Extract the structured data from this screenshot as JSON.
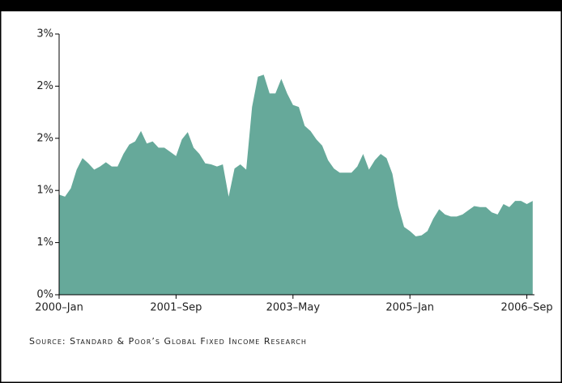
{
  "chart_data": {
    "type": "area",
    "source": "Source: Standard & Poor’s Global Fixed Income Research",
    "color": "#66a99a",
    "categories": [
      "2000–Jan",
      null,
      null,
      null,
      null,
      null,
      null,
      null,
      null,
      null,
      null,
      null,
      null,
      null,
      null,
      null,
      null,
      null,
      null,
      null,
      "2001–Sep",
      null,
      null,
      null,
      null,
      null,
      null,
      null,
      null,
      null,
      null,
      null,
      null,
      null,
      null,
      null,
      null,
      null,
      null,
      null,
      "2003–May",
      null,
      null,
      null,
      null,
      null,
      null,
      null,
      null,
      null,
      null,
      null,
      null,
      null,
      null,
      null,
      null,
      null,
      null,
      null,
      "2005–Jan",
      null,
      null,
      null,
      null,
      null,
      null,
      null,
      null,
      null,
      null,
      null,
      null,
      null,
      null,
      null,
      null,
      null,
      null,
      null,
      "2006–Sep",
      null
    ],
    "values": [
      0.96,
      0.94,
      1.02,
      1.2,
      1.31,
      1.26,
      1.2,
      1.23,
      1.27,
      1.23,
      1.23,
      1.35,
      1.44,
      1.47,
      1.57,
      1.45,
      1.47,
      1.41,
      1.41,
      1.37,
      1.33,
      1.49,
      1.56,
      1.41,
      1.35,
      1.26,
      1.25,
      1.23,
      1.25,
      0.94,
      1.21,
      1.25,
      1.2,
      1.8,
      2.09,
      2.11,
      1.93,
      1.93,
      2.07,
      1.93,
      1.82,
      1.8,
      1.62,
      1.57,
      1.49,
      1.43,
      1.29,
      1.21,
      1.17,
      1.17,
      1.17,
      1.23,
      1.35,
      1.2,
      1.29,
      1.35,
      1.31,
      1.16,
      0.85,
      0.65,
      0.61,
      0.56,
      0.57,
      0.61,
      0.73,
      0.82,
      0.77,
      0.75,
      0.75,
      0.77,
      0.81,
      0.85,
      0.84,
      0.84,
      0.79,
      0.77,
      0.87,
      0.84,
      0.9,
      0.9,
      0.87,
      0.9
    ],
    "ylim": [
      0,
      2.5
    ],
    "yticks": [
      {
        "value": 0,
        "label": "0%"
      },
      {
        "value": 0.5,
        "label": "1%"
      },
      {
        "value": 1,
        "label": "1%"
      },
      {
        "value": 1.5,
        "label": "2%"
      },
      {
        "value": 2,
        "label": "2%"
      },
      {
        "value": 2.5,
        "label": "3%"
      }
    ]
  }
}
